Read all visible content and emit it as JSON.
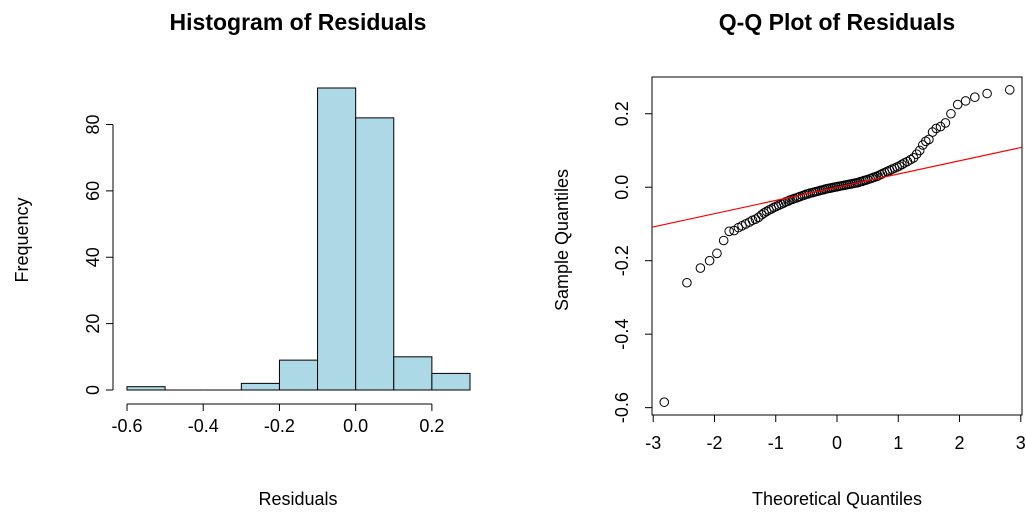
{
  "chart_data": [
    {
      "type": "bar",
      "title": "Histogram of Residuals",
      "xlabel": "Residuals",
      "ylabel": "Frequency",
      "bins": [
        {
          "x0": -0.6,
          "x1": -0.5,
          "count": 1
        },
        {
          "x0": -0.5,
          "x1": -0.4,
          "count": 0
        },
        {
          "x0": -0.4,
          "x1": -0.3,
          "count": 0
        },
        {
          "x0": -0.3,
          "x1": -0.2,
          "count": 2
        },
        {
          "x0": -0.2,
          "x1": -0.1,
          "count": 9
        },
        {
          "x0": -0.1,
          "x1": 0.0,
          "count": 91
        },
        {
          "x0": 0.0,
          "x1": 0.1,
          "count": 82
        },
        {
          "x0": 0.1,
          "x1": 0.2,
          "count": 10
        },
        {
          "x0": 0.2,
          "x1": 0.3,
          "count": 5
        }
      ],
      "xticks": [
        -0.6,
        -0.4,
        -0.2,
        0.0,
        0.2
      ],
      "xtick_labels": [
        "-0.6",
        "-0.4",
        "-0.2",
        "0.0",
        "0.2"
      ],
      "yticks": [
        0,
        20,
        40,
        60,
        80
      ],
      "ytick_labels": [
        "0",
        "20",
        "40",
        "60",
        "80"
      ],
      "xlim": [
        -0.6,
        0.3
      ],
      "ylim": [
        0,
        91
      ],
      "bar_color": "#add8e6",
      "grid": false
    },
    {
      "type": "scatter",
      "title": "Q-Q Plot of Residuals",
      "xlabel": "Theoretical Quantiles",
      "ylabel": "Sample Quantiles",
      "points": [
        [
          -2.82,
          -0.585
        ],
        [
          -2.45,
          -0.26
        ],
        [
          -2.23,
          -0.22
        ],
        [
          -2.08,
          -0.2
        ],
        [
          -1.96,
          -0.18
        ],
        [
          -1.85,
          -0.145
        ],
        [
          -1.76,
          -0.12
        ],
        [
          -1.68,
          -0.118
        ],
        [
          -1.61,
          -0.11
        ],
        [
          -1.55,
          -0.105
        ],
        [
          -1.49,
          -0.1
        ],
        [
          -1.43,
          -0.095
        ],
        [
          -1.38,
          -0.09
        ],
        [
          -1.33,
          -0.087
        ],
        [
          -1.28,
          -0.082
        ],
        [
          -1.23,
          -0.075
        ],
        [
          -1.19,
          -0.07
        ],
        [
          -1.15,
          -0.066
        ],
        [
          -1.11,
          -0.062
        ],
        [
          -1.07,
          -0.059
        ],
        [
          -1.03,
          -0.055
        ],
        [
          -0.99,
          -0.052
        ],
        [
          -0.95,
          -0.049
        ],
        [
          -0.91,
          -0.046
        ],
        [
          -0.87,
          -0.043
        ],
        [
          -0.84,
          -0.04
        ],
        [
          -0.8,
          -0.038
        ],
        [
          -0.77,
          -0.035
        ],
        [
          -0.73,
          -0.033
        ],
        [
          -0.7,
          -0.031
        ],
        [
          -0.66,
          -0.029
        ],
        [
          -0.63,
          -0.027
        ],
        [
          -0.6,
          -0.025
        ],
        [
          -0.56,
          -0.023
        ],
        [
          -0.53,
          -0.021
        ],
        [
          -0.5,
          -0.019
        ],
        [
          -0.47,
          -0.018
        ],
        [
          -0.44,
          -0.016
        ],
        [
          -0.4,
          -0.015
        ],
        [
          -0.37,
          -0.013
        ],
        [
          -0.34,
          -0.012
        ],
        [
          -0.31,
          -0.011
        ],
        [
          -0.28,
          -0.009
        ],
        [
          -0.25,
          -0.008
        ],
        [
          -0.22,
          -0.007
        ],
        [
          -0.19,
          -0.005
        ],
        [
          -0.16,
          -0.004
        ],
        [
          -0.13,
          -0.003
        ],
        [
          -0.1,
          -0.002
        ],
        [
          -0.07,
          -0.001
        ],
        [
          -0.04,
          0.0
        ],
        [
          -0.01,
          0.001
        ],
        [
          0.02,
          0.002
        ],
        [
          0.05,
          0.003
        ],
        [
          0.08,
          0.004
        ],
        [
          0.11,
          0.005
        ],
        [
          0.14,
          0.006
        ],
        [
          0.17,
          0.007
        ],
        [
          0.2,
          0.008
        ],
        [
          0.23,
          0.009
        ],
        [
          0.26,
          0.01
        ],
        [
          0.29,
          0.011
        ],
        [
          0.32,
          0.012
        ],
        [
          0.35,
          0.013
        ],
        [
          0.38,
          0.015
        ],
        [
          0.41,
          0.016
        ],
        [
          0.44,
          0.018
        ],
        [
          0.47,
          0.019
        ],
        [
          0.5,
          0.021
        ],
        [
          0.54,
          0.023
        ],
        [
          0.57,
          0.025
        ],
        [
          0.6,
          0.027
        ],
        [
          0.64,
          0.029
        ],
        [
          0.67,
          0.031
        ],
        [
          0.71,
          0.034
        ],
        [
          0.74,
          0.037
        ],
        [
          0.78,
          0.04
        ],
        [
          0.82,
          0.043
        ],
        [
          0.86,
          0.046
        ],
        [
          0.9,
          0.049
        ],
        [
          0.94,
          0.052
        ],
        [
          0.98,
          0.055
        ],
        [
          1.02,
          0.058
        ],
        [
          1.06,
          0.062
        ],
        [
          1.1,
          0.066
        ],
        [
          1.15,
          0.07
        ],
        [
          1.2,
          0.075
        ],
        [
          1.25,
          0.08
        ],
        [
          1.3,
          0.09
        ],
        [
          1.35,
          0.1
        ],
        [
          1.4,
          0.115
        ],
        [
          1.45,
          0.125
        ],
        [
          1.5,
          0.13
        ],
        [
          1.56,
          0.15
        ],
        [
          1.62,
          0.16
        ],
        [
          1.69,
          0.165
        ],
        [
          1.77,
          0.175
        ],
        [
          1.86,
          0.2
        ],
        [
          1.97,
          0.225
        ],
        [
          2.1,
          0.235
        ],
        [
          2.25,
          0.245
        ],
        [
          2.45,
          0.255
        ],
        [
          2.82,
          0.265
        ]
      ],
      "reference_line": {
        "intercept": 0.0,
        "slope": 0.036,
        "color": "#ff0000"
      },
      "xticks": [
        -3,
        -2,
        -1,
        0,
        1,
        2,
        3
      ],
      "xtick_labels": [
        "-3",
        "-2",
        "-1",
        "0",
        "1",
        "2",
        "3"
      ],
      "yticks": [
        -0.6,
        -0.4,
        -0.2,
        0.0,
        0.2
      ],
      "ytick_labels": [
        "-0.6",
        "-0.4",
        "-0.2",
        "0.0",
        "0.2"
      ],
      "xlim": [
        -3.02,
        3.02
      ],
      "ylim": [
        -0.62,
        0.3
      ],
      "point_style": "open-circle",
      "grid": false
    }
  ]
}
